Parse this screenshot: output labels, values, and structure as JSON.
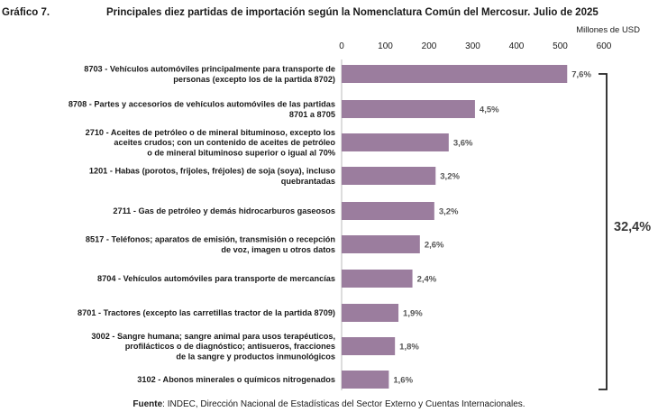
{
  "figure_label": "Gráfico 7.",
  "title": "Principales diez partidas de importación según la Nomenclatura Común del Mercosur. Julio de 2025",
  "unit_label": "Millones de USD",
  "total_label": "32,4%",
  "source": {
    "prefix": "Fuente",
    "text": ": INDEC, Dirección Nacional de Estadísticas del Sector Externo y Cuentas Internacionales."
  },
  "colors": {
    "bar": "#9b7d9e",
    "bracket": "#222222"
  },
  "chart_data": {
    "type": "bar",
    "orientation": "horizontal",
    "xlim": [
      0,
      600
    ],
    "ticks": [
      "0",
      "100",
      "200",
      "300",
      "400",
      "500",
      "600"
    ],
    "grid": false,
    "categories": [
      [
        "8703 - Vehículos automóviles principalmente para transporte de",
        "personas (excepto los de la partida 8702)"
      ],
      [
        "8708 - Partes y accesorios de vehículos automóviles de las partidas",
        "8701 a 8705"
      ],
      [
        "2710 - Aceites de petróleo o de mineral bituminoso, excepto los",
        "aceites crudos; con un contenido de aceites de petróleo",
        "o de mineral bituminoso superior o igual al 70%"
      ],
      [
        "1201 - Habas (porotos, frijoles, fréjoles) de soja (soya), incluso",
        "quebrantadas"
      ],
      [
        "2711 - Gas de petróleo y demás hidrocarburos gaseosos"
      ],
      [
        "8517 - Teléfonos; aparatos de emisión, transmisión o recepción",
        "de voz, imagen u otros datos"
      ],
      [
        "8704 - Vehículos automóviles para transporte de mercancías"
      ],
      [
        "8701 - Tractores (excepto las carretillas tractor de la partida 8709)"
      ],
      [
        "3002 - Sangre humana; sangre animal para usos terapéuticos,",
        "profilácticos o de diagnóstico; antisueros, fracciones",
        "de la sangre y productos inmunológicos"
      ],
      [
        "3102 - Abonos minerales o químicos nitrogenados"
      ]
    ],
    "values": [
      516,
      305,
      245,
      215,
      212,
      179,
      162,
      130,
      122,
      108
    ],
    "data_labels": [
      "7,6%",
      "4,5%",
      "3,6%",
      "3,2%",
      "3,2%",
      "2,6%",
      "2,4%",
      "1,9%",
      "1,8%",
      "1,6%"
    ]
  }
}
